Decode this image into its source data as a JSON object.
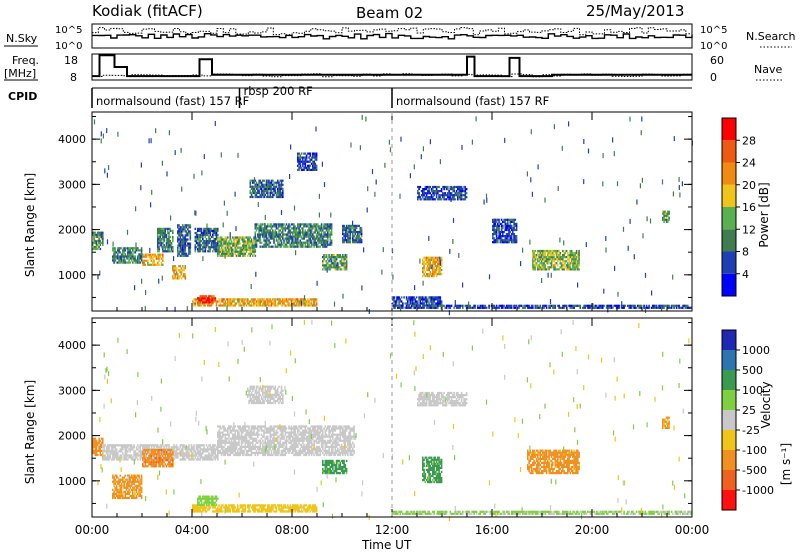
{
  "header": {
    "station": "Kodiak (fitACF)",
    "beam": "Beam 02",
    "date": "25/May/2013"
  },
  "top_panels": {
    "nsky_label": "N.Sky",
    "nsky_ticks": [
      "10^5",
      "10^0"
    ],
    "nsearch_label": "N.Search",
    "nsearch_ticks": [
      "10^5",
      "10^0"
    ],
    "freq_label": "Freq.",
    "freq_unit": "[MHz]",
    "freq_ticks": [
      "18",
      "8"
    ],
    "nave_label": "Nave",
    "nave_ticks": [
      "60",
      "0"
    ],
    "cpid_label": "CPID",
    "cpid_segments": [
      {
        "label": "normalsound (fast) 157 RF",
        "start_h": 0.0,
        "end_h": 5.9
      },
      {
        "label": "rbsp 200 RF",
        "start_h": 5.9,
        "end_h": 12.0
      },
      {
        "label": "normalsound (fast) 157 RF",
        "start_h": 12.0,
        "end_h": 24.0
      }
    ]
  },
  "x_axis": {
    "label": "Time UT",
    "ticks": [
      "00:00",
      "04:00",
      "08:00",
      "12:00",
      "16:00",
      "20:00",
      "00:00"
    ]
  },
  "power_colorbar": {
    "label": "Power [dB]",
    "ticks": [
      "4",
      "8",
      "12",
      "16",
      "20",
      "24",
      "28"
    ],
    "colors": [
      "#0000ff",
      "#1e3fb4",
      "#3f7d50",
      "#58b050",
      "#f0c418",
      "#f08a10",
      "#f05a10",
      "#ff0000"
    ]
  },
  "velocity_colorbar": {
    "label": "Velocity",
    "unit": "[m s⁻¹]",
    "ticks": [
      "1000",
      "500",
      "100",
      "25",
      "-25",
      "-100",
      "-500",
      "-1000"
    ],
    "colors": [
      "#1e28b4",
      "#2e74b0",
      "#3a9a50",
      "#7fd040",
      "#c8c8c8",
      "#f0c418",
      "#f09020",
      "#f06020",
      "#ff1010"
    ]
  },
  "chart_data": [
    {
      "type": "heatmap",
      "title": "",
      "ylabel": "Slant Range [km]",
      "xlabel": "",
      "xlim": [
        0,
        24
      ],
      "ylim": [
        200,
        4600
      ],
      "yticks": [
        "1000",
        "2000",
        "3000",
        "4000"
      ],
      "quantity": "Power [dB]",
      "regions": [
        {
          "t0": 0.0,
          "t1": 0.4,
          "r0": 1550,
          "r1": 1950,
          "level": 12
        },
        {
          "t0": 0.8,
          "t1": 2.0,
          "r0": 1250,
          "r1": 1600,
          "level": 10
        },
        {
          "t0": 2.0,
          "t1": 2.8,
          "r0": 1200,
          "r1": 1450,
          "level": 20
        },
        {
          "t0": 2.6,
          "t1": 3.2,
          "r0": 1500,
          "r1": 2000,
          "level": 10
        },
        {
          "t0": 3.2,
          "t1": 3.7,
          "r0": 900,
          "r1": 1200,
          "level": 20
        },
        {
          "t0": 3.4,
          "t1": 3.9,
          "r0": 1400,
          "r1": 2100,
          "level": 8
        },
        {
          "t0": 4.1,
          "t1": 5.0,
          "r0": 1500,
          "r1": 2000,
          "level": 8
        },
        {
          "t0": 4.0,
          "t1": 9.0,
          "r0": 300,
          "r1": 450,
          "level": 20
        },
        {
          "t0": 4.2,
          "t1": 4.9,
          "r0": 370,
          "r1": 520,
          "level": 28
        },
        {
          "t0": 5.0,
          "t1": 6.5,
          "r0": 1400,
          "r1": 1850,
          "level": 14
        },
        {
          "t0": 6.3,
          "t1": 7.6,
          "r0": 2700,
          "r1": 3100,
          "level": 8
        },
        {
          "t0": 6.5,
          "t1": 9.6,
          "r0": 1600,
          "r1": 2100,
          "level": 10
        },
        {
          "t0": 9.2,
          "t1": 10.2,
          "r0": 1100,
          "r1": 1450,
          "level": 12
        },
        {
          "t0": 8.2,
          "t1": 9.0,
          "r0": 3300,
          "r1": 3700,
          "level": 6
        },
        {
          "t0": 10.0,
          "t1": 10.8,
          "r0": 1700,
          "r1": 2100,
          "level": 8
        },
        {
          "t0": 12.0,
          "t1": 14.0,
          "r0": 300,
          "r1": 500,
          "level": 6
        },
        {
          "t0": 13.2,
          "t1": 14.0,
          "r0": 950,
          "r1": 1400,
          "level": 20
        },
        {
          "t0": 13.0,
          "t1": 15.0,
          "r0": 2650,
          "r1": 2950,
          "level": 6
        },
        {
          "t0": 16.0,
          "t1": 17.0,
          "r0": 1700,
          "r1": 2200,
          "level": 6
        },
        {
          "t0": 17.6,
          "t1": 19.5,
          "r0": 1100,
          "r1": 1550,
          "level": 14
        },
        {
          "t0": 22.8,
          "t1": 23.1,
          "r0": 2150,
          "r1": 2400,
          "level": 12
        },
        {
          "t0": 12.0,
          "t1": 24.0,
          "r0": 250,
          "r1": 330,
          "level": 6
        }
      ]
    },
    {
      "type": "heatmap",
      "title": "",
      "ylabel": "Slant Range [km]",
      "xlabel": "Time UT",
      "xlim": [
        0,
        24
      ],
      "ylim": [
        200,
        4600
      ],
      "yticks": [
        "1000",
        "2000",
        "3000",
        "4000"
      ],
      "quantity": "Velocity [m s⁻¹]",
      "regions": [
        {
          "t0": 0.0,
          "t1": 0.4,
          "r0": 1550,
          "r1": 1950,
          "level": -200
        },
        {
          "t0": 0.4,
          "t1": 5.0,
          "r0": 1450,
          "r1": 1800,
          "level": 0
        },
        {
          "t0": 0.8,
          "t1": 2.0,
          "r0": 600,
          "r1": 1100,
          "level": -150
        },
        {
          "t0": 2.0,
          "t1": 3.2,
          "r0": 1300,
          "r1": 1700,
          "level": -400
        },
        {
          "t0": 4.0,
          "t1": 9.0,
          "r0": 300,
          "r1": 450,
          "level": -60
        },
        {
          "t0": 4.2,
          "t1": 5.0,
          "r0": 450,
          "r1": 650,
          "level": 60
        },
        {
          "t0": 5.0,
          "t1": 10.5,
          "r0": 1550,
          "r1": 2200,
          "level": 0
        },
        {
          "t0": 6.2,
          "t1": 7.6,
          "r0": 2700,
          "r1": 3100,
          "level": 0
        },
        {
          "t0": 9.2,
          "t1": 10.2,
          "r0": 1150,
          "r1": 1450,
          "level": 150
        },
        {
          "t0": 13.2,
          "t1": 14.0,
          "r0": 950,
          "r1": 1500,
          "level": 150
        },
        {
          "t0": 13.0,
          "t1": 15.0,
          "r0": 2650,
          "r1": 2950,
          "level": 0
        },
        {
          "t0": 17.4,
          "t1": 19.5,
          "r0": 1150,
          "r1": 1650,
          "level": -150
        },
        {
          "t0": 12.0,
          "t1": 24.0,
          "r0": 250,
          "r1": 330,
          "level": 30
        },
        {
          "t0": 22.8,
          "t1": 23.1,
          "r0": 2150,
          "r1": 2400,
          "level": -150
        }
      ]
    }
  ]
}
